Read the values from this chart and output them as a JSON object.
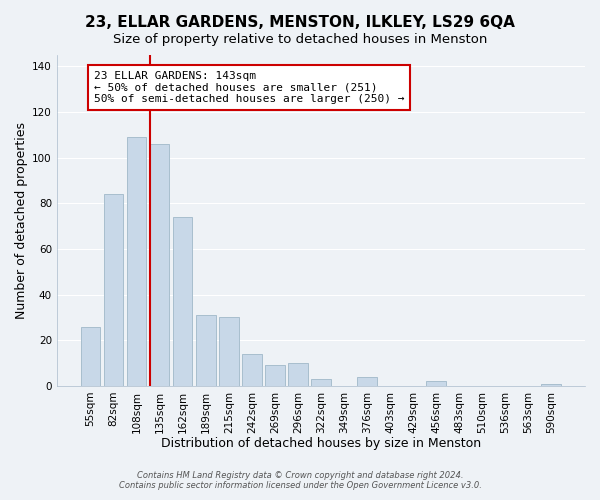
{
  "title": "23, ELLAR GARDENS, MENSTON, ILKLEY, LS29 6QA",
  "subtitle": "Size of property relative to detached houses in Menston",
  "xlabel": "Distribution of detached houses by size in Menston",
  "ylabel": "Number of detached properties",
  "bar_labels": [
    "55sqm",
    "82sqm",
    "108sqm",
    "135sqm",
    "162sqm",
    "189sqm",
    "215sqm",
    "242sqm",
    "269sqm",
    "296sqm",
    "322sqm",
    "349sqm",
    "376sqm",
    "403sqm",
    "429sqm",
    "456sqm",
    "483sqm",
    "510sqm",
    "536sqm",
    "563sqm",
    "590sqm"
  ],
  "bar_values": [
    26,
    84,
    109,
    106,
    74,
    31,
    30,
    14,
    9,
    10,
    3,
    0,
    4,
    0,
    0,
    2,
    0,
    0,
    0,
    0,
    1
  ],
  "bar_color": "#c8d8e8",
  "bar_edge_color": "#a8bece",
  "highlight_x_label": "135sqm",
  "highlight_line_color": "#cc0000",
  "ylim": [
    0,
    145
  ],
  "yticks": [
    0,
    20,
    40,
    60,
    80,
    100,
    120,
    140
  ],
  "annotation_title": "23 ELLAR GARDENS: 143sqm",
  "annotation_line1": "← 50% of detached houses are smaller (251)",
  "annotation_line2": "50% of semi-detached houses are larger (250) →",
  "annotation_box_color": "#ffffff",
  "annotation_box_edge": "#cc0000",
  "footer_line1": "Contains HM Land Registry data © Crown copyright and database right 2024.",
  "footer_line2": "Contains public sector information licensed under the Open Government Licence v3.0.",
  "title_fontsize": 11,
  "subtitle_fontsize": 9.5,
  "axis_label_fontsize": 9,
  "tick_fontsize": 7.5,
  "annotation_fontsize": 8,
  "footer_fontsize": 6,
  "background_color": "#eef2f6",
  "plot_background": "#eef2f6",
  "grid_color": "#ffffff"
}
